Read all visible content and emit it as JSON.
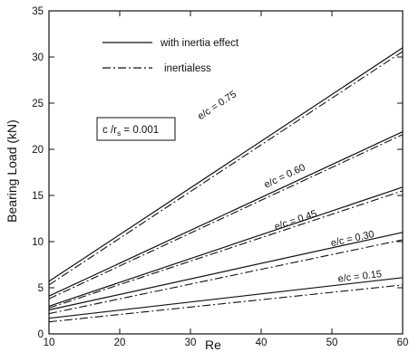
{
  "chart_data": {
    "type": "line",
    "title": "",
    "xlabel": "Re",
    "ylabel": "Bearing Load (kN)",
    "xlim": [
      10,
      60
    ],
    "ylim": [
      0,
      35
    ],
    "xticks": [
      10,
      20,
      30,
      40,
      50,
      60
    ],
    "yticks": [
      0,
      5,
      10,
      15,
      20,
      25,
      30,
      35
    ],
    "grid": false,
    "legend_position": "top-left",
    "legend": [
      {
        "label": "with inertia effect",
        "style": "solid"
      },
      {
        "label": "inertialess",
        "style": "dash-dot"
      }
    ],
    "annotation_box": {
      "main": "c /r",
      "sub": "s",
      "rest": " = 0.001"
    },
    "series": [
      {
        "curve_label": "e/c = 0.15",
        "label_at": [
          54,
          5.9
        ],
        "with_inertia": {
          "x": [
            10,
            60
          ],
          "y": [
            1.7,
            6.1
          ]
        },
        "inertialess": {
          "x": [
            10,
            60
          ],
          "y": [
            1.3,
            5.3
          ]
        }
      },
      {
        "curve_label": "e/c = 0.30",
        "label_at": [
          53,
          10.0
        ],
        "with_inertia": {
          "x": [
            10,
            60
          ],
          "y": [
            2.6,
            11.0
          ]
        },
        "inertialess": {
          "x": [
            10,
            60
          ],
          "y": [
            2.2,
            10.2
          ]
        }
      },
      {
        "curve_label": "e/c = 0.45",
        "label_at": [
          45,
          12.0
        ],
        "with_inertia": {
          "x": [
            10,
            60
          ],
          "y": [
            3.0,
            15.9
          ]
        },
        "inertialess": {
          "x": [
            10,
            60
          ],
          "y": [
            2.8,
            15.5
          ]
        }
      },
      {
        "curve_label": "e/c = 0.60",
        "label_at": [
          43.5,
          16.8
        ],
        "with_inertia": {
          "x": [
            10,
            60
          ],
          "y": [
            4.1,
            21.9
          ]
        },
        "inertialess": {
          "x": [
            10,
            60
          ],
          "y": [
            3.8,
            21.6
          ]
        }
      },
      {
        "curve_label": "e/c = 0.75",
        "label_at": [
          34,
          24.5
        ],
        "with_inertia": {
          "x": [
            10,
            60
          ],
          "y": [
            5.7,
            31.0
          ]
        },
        "inertialess": {
          "x": [
            10,
            60
          ],
          "y": [
            5.3,
            30.6
          ]
        }
      }
    ]
  }
}
